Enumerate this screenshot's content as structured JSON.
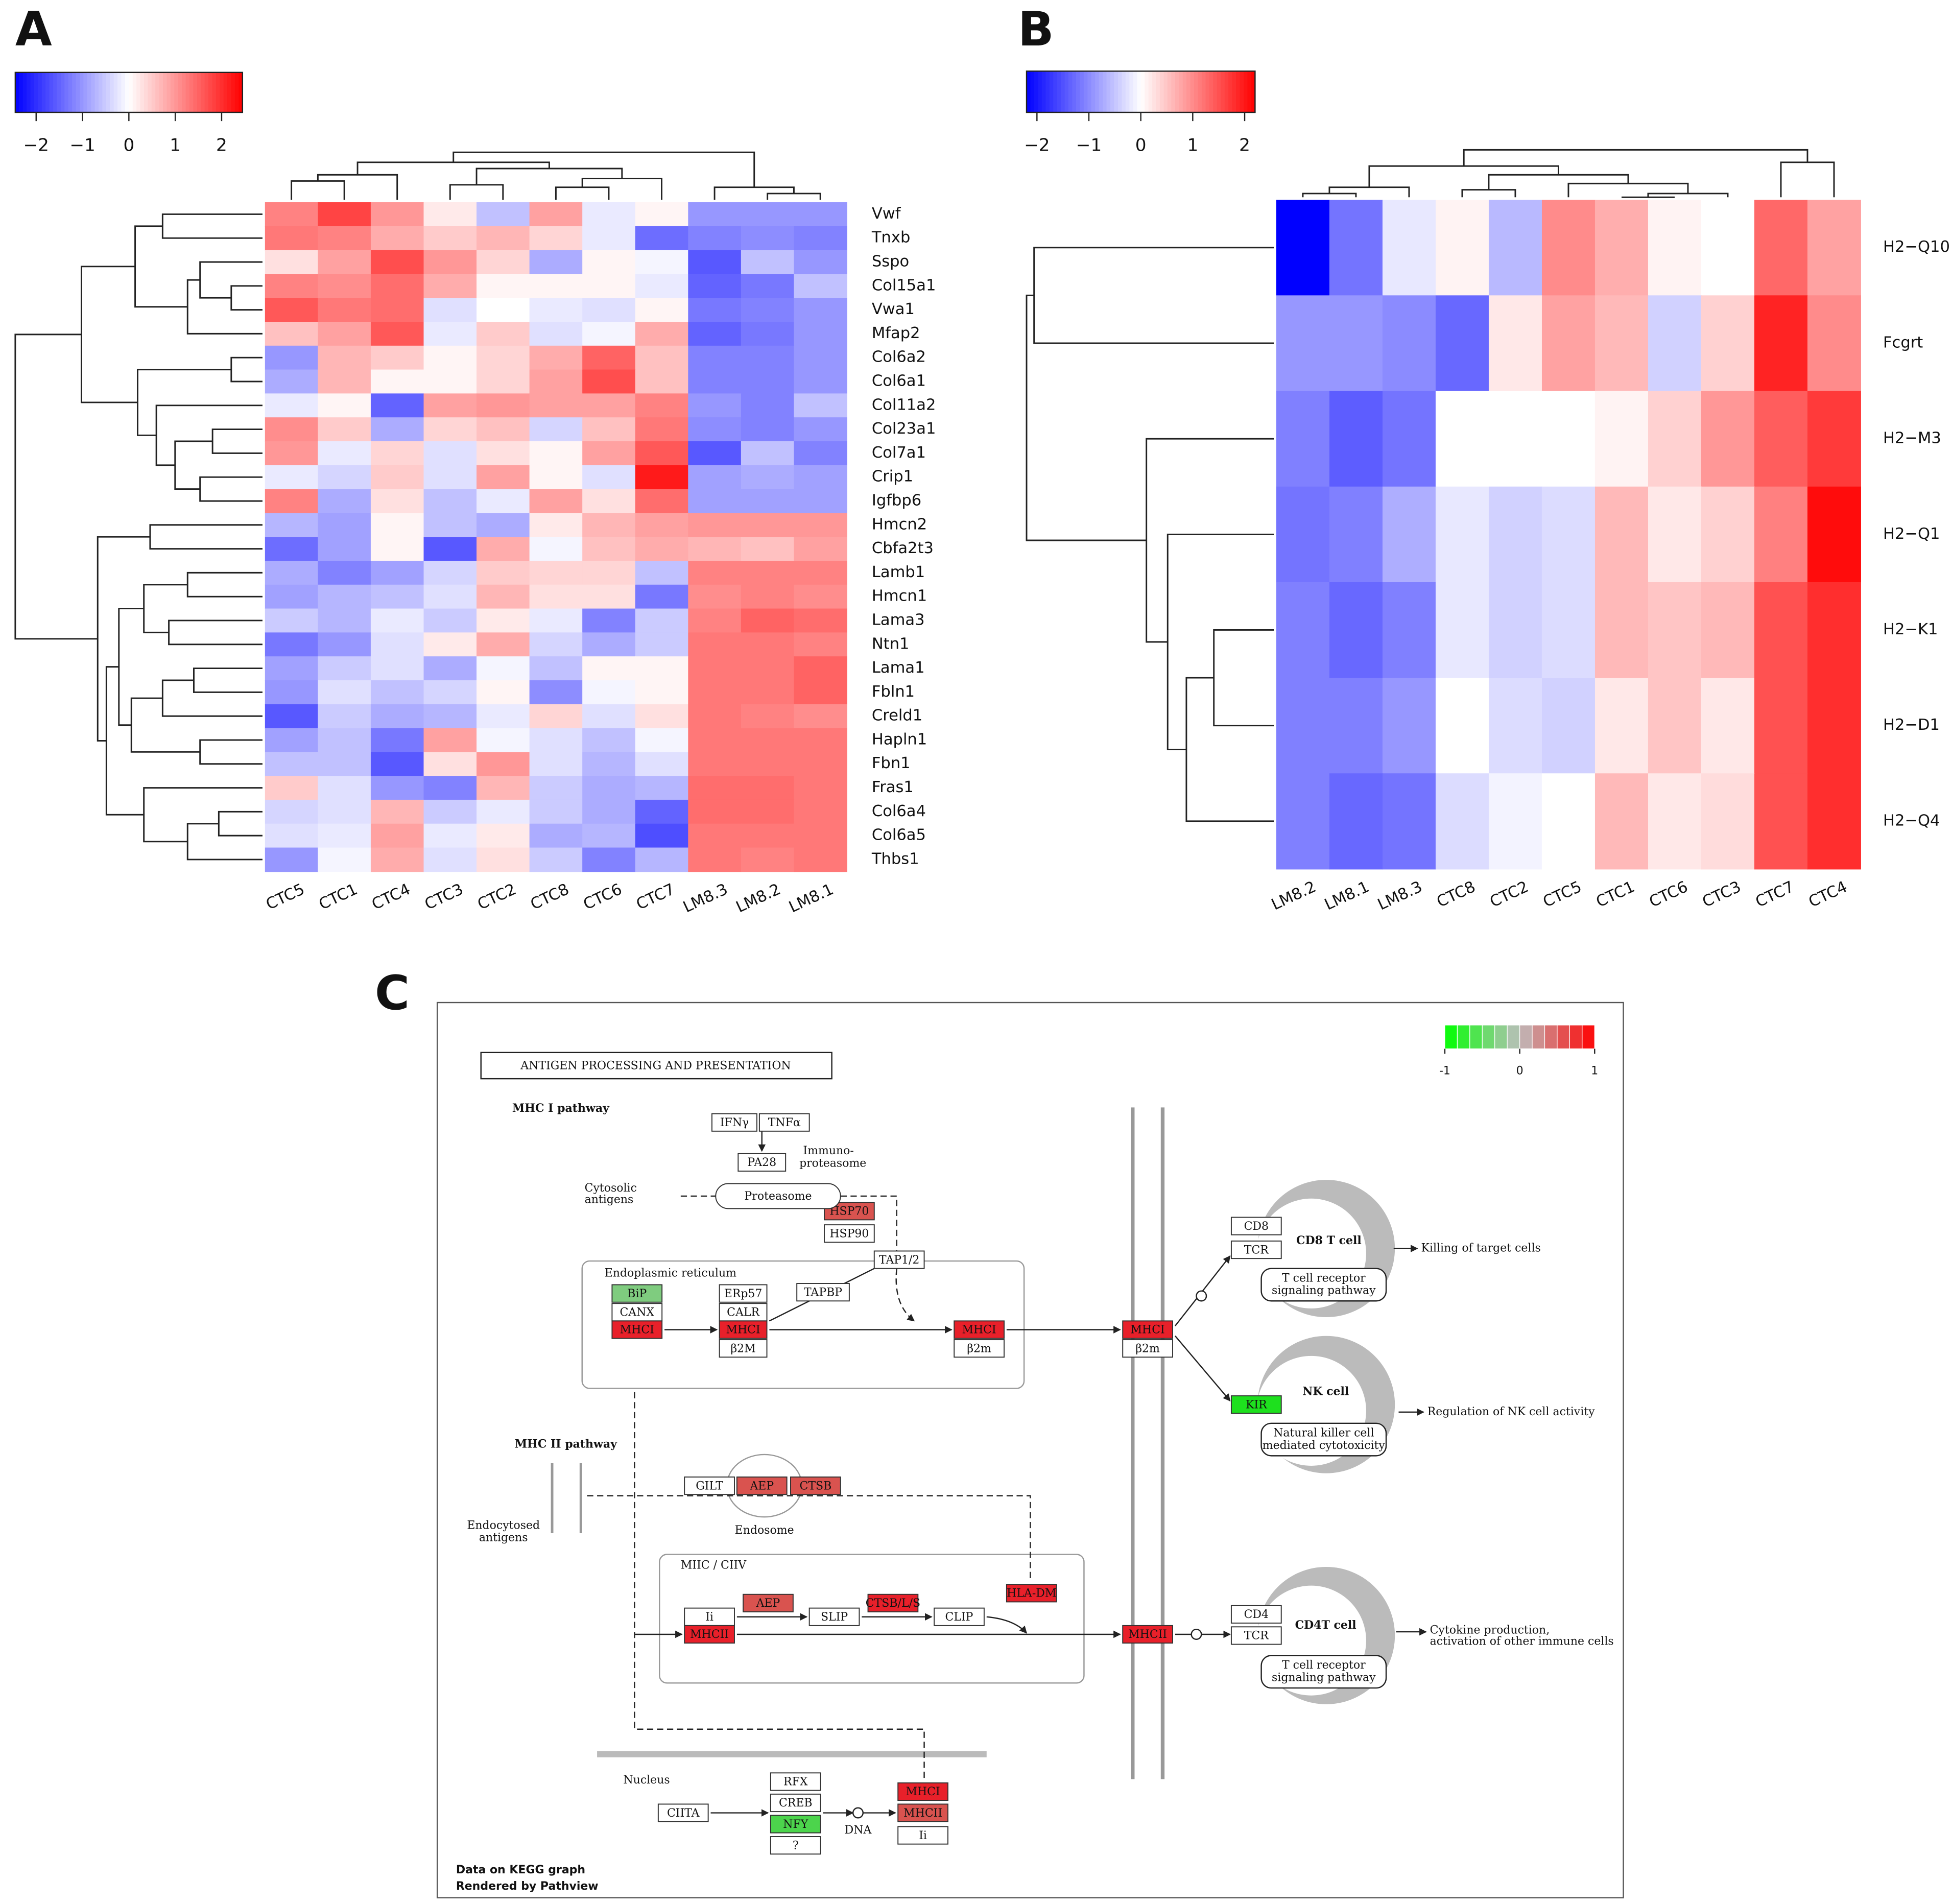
{
  "chart_data": [
    {
      "type": "heatmap",
      "panel": "A",
      "columns": [
        "CTC5",
        "CTC1",
        "CTC4",
        "CTC3",
        "CTC2",
        "CTC8",
        "CTC6",
        "CTC7",
        "LM8.3",
        "LM8.2",
        "LM8.1"
      ],
      "rows": [
        "Vwf",
        "Tnxb",
        "Sspo",
        "Col15a1",
        "Vwa1",
        "Mfap2",
        "Col6a2",
        "Col6a1",
        "Col11a2",
        "Col23a1",
        "Col7a1",
        "Crip1",
        "Igfbp6",
        "Hmcn2",
        "Cbfa2t3",
        "Lamb1",
        "Hmcn1",
        "Lama3",
        "Ntn1",
        "Lama1",
        "Fbln1",
        "Creld1",
        "Hapln1",
        "Fbn1",
        "Fras1",
        "Col6a4",
        "Col6a5",
        "Thbs1"
      ],
      "values": [
        [
          1.2,
          1.8,
          1.0,
          0.2,
          -0.6,
          0.9,
          -0.2,
          0.1,
          -1.0,
          -1.0,
          -1.0
        ],
        [
          1.3,
          1.2,
          0.8,
          0.5,
          0.7,
          0.4,
          -0.2,
          -1.4,
          -1.2,
          -1.1,
          -1.2
        ],
        [
          0.3,
          0.9,
          1.7,
          1.0,
          0.4,
          -0.8,
          0.1,
          -0.1,
          -1.6,
          -0.6,
          -1.0
        ],
        [
          1.2,
          1.1,
          1.4,
          0.8,
          0.1,
          0.1,
          0.1,
          -0.2,
          -1.5,
          -1.3,
          -0.6
        ],
        [
          1.6,
          1.3,
          1.4,
          -0.3,
          0.0,
          -0.2,
          -0.3,
          0.1,
          -1.3,
          -1.2,
          -1.0
        ],
        [
          0.6,
          0.9,
          1.6,
          -0.2,
          0.5,
          -0.3,
          -0.1,
          0.8,
          -1.5,
          -1.3,
          -1.0
        ],
        [
          -1.0,
          0.7,
          0.5,
          0.1,
          0.4,
          0.8,
          1.5,
          0.6,
          -1.2,
          -1.2,
          -1.0
        ],
        [
          -0.8,
          0.7,
          0.1,
          0.1,
          0.4,
          0.9,
          1.7,
          0.6,
          -1.2,
          -1.2,
          -1.0
        ],
        [
          -0.2,
          0.1,
          -1.5,
          0.9,
          1.0,
          0.9,
          0.9,
          1.2,
          -1.0,
          -1.2,
          -0.6
        ],
        [
          1.1,
          0.5,
          -0.8,
          0.4,
          0.6,
          -0.4,
          0.6,
          1.3,
          -1.1,
          -1.2,
          -1.0
        ],
        [
          1.0,
          -0.2,
          0.4,
          -0.3,
          0.3,
          0.1,
          0.9,
          1.6,
          -1.6,
          -0.6,
          -1.2
        ],
        [
          -0.2,
          -0.4,
          0.5,
          -0.3,
          0.9,
          0.1,
          -0.3,
          2.2,
          -0.9,
          -0.8,
          -0.9
        ],
        [
          1.2,
          -0.8,
          0.3,
          -0.6,
          -0.2,
          0.9,
          0.3,
          1.4,
          -0.9,
          -0.9,
          -0.9
        ],
        [
          -0.7,
          -0.9,
          0.1,
          -0.6,
          -0.8,
          0.2,
          0.7,
          0.9,
          1.0,
          1.0,
          1.0
        ],
        [
          -1.4,
          -0.9,
          0.1,
          -1.6,
          0.8,
          -0.1,
          0.6,
          0.8,
          0.7,
          0.6,
          0.9
        ],
        [
          -0.8,
          -1.2,
          -0.9,
          -0.4,
          0.5,
          0.4,
          0.4,
          -0.6,
          1.2,
          1.2,
          1.2
        ],
        [
          -0.9,
          -0.7,
          -0.6,
          -0.3,
          0.7,
          0.3,
          0.3,
          -1.3,
          1.1,
          1.2,
          1.1
        ],
        [
          -0.5,
          -0.7,
          -0.2,
          -0.5,
          0.2,
          -0.2,
          -1.2,
          -0.5,
          1.2,
          1.5,
          1.4
        ],
        [
          -1.3,
          -1.0,
          -0.3,
          0.2,
          0.8,
          -0.4,
          -0.8,
          -0.5,
          1.3,
          1.3,
          1.2
        ],
        [
          -0.9,
          -0.5,
          -0.3,
          -0.8,
          -0.1,
          -0.6,
          0.1,
          0.1,
          1.3,
          1.3,
          1.5
        ],
        [
          -1.0,
          -0.3,
          -0.6,
          -0.4,
          0.1,
          -1.1,
          -0.1,
          0.1,
          1.3,
          1.3,
          1.5
        ],
        [
          -1.6,
          -0.5,
          -0.8,
          -0.7,
          -0.2,
          0.4,
          -0.3,
          0.3,
          1.3,
          1.2,
          1.1
        ],
        [
          -0.9,
          -0.6,
          -1.3,
          0.9,
          -0.1,
          -0.3,
          -0.6,
          -0.1,
          1.3,
          1.3,
          1.3
        ],
        [
          -0.6,
          -0.6,
          -1.6,
          0.3,
          1.0,
          -0.3,
          -0.7,
          -0.3,
          1.3,
          1.3,
          1.3
        ],
        [
          0.5,
          -0.3,
          -1.0,
          -1.2,
          0.7,
          -0.5,
          -0.8,
          -0.7,
          1.4,
          1.4,
          1.3
        ],
        [
          -0.4,
          -0.3,
          0.7,
          -0.5,
          -0.2,
          -0.5,
          -0.8,
          -1.5,
          1.4,
          1.4,
          1.3
        ],
        [
          -0.3,
          -0.2,
          0.9,
          -0.2,
          0.2,
          -0.8,
          -0.7,
          -1.7,
          1.3,
          1.3,
          1.3
        ],
        [
          -1.0,
          -0.1,
          0.8,
          -0.3,
          0.3,
          -0.5,
          -1.2,
          -0.7,
          1.3,
          1.2,
          1.3
        ]
      ],
      "colorbar": {
        "lim": [
          -2.45,
          2.45
        ],
        "ticks": [
          {
            "value": -2,
            "label": "−2"
          },
          {
            "value": -1,
            "label": "−1"
          },
          0,
          1,
          2
        ],
        "colors": [
          "#0000ff",
          "#ffffff",
          "#ff0000"
        ]
      }
    },
    {
      "type": "heatmap",
      "panel": "B",
      "columns": [
        "LM8.2",
        "LM8.1",
        "LM8.3",
        "CTC8",
        "CTC2",
        "CTC5",
        "CTC1",
        "CTC6",
        "CTC3",
        "CTC7",
        "CTC4"
      ],
      "rows": [
        "H2−Q10",
        "Fcgrt",
        "H2−M3",
        "H2−Q1",
        "H2−K1",
        "H2−D1",
        "H2−Q4"
      ],
      "values": [
        [
          -2.2,
          -1.2,
          -0.2,
          0.1,
          -0.6,
          1.0,
          0.7,
          0.1,
          0.0,
          1.3,
          0.8
        ],
        [
          -0.9,
          -0.9,
          -1.0,
          -1.3,
          0.2,
          0.8,
          0.6,
          -0.4,
          0.4,
          1.9,
          1.0
        ],
        [
          -1.1,
          -1.4,
          -1.2,
          0.0,
          0.0,
          0.0,
          0.1,
          0.4,
          0.9,
          1.4,
          1.7
        ],
        [
          -1.2,
          -1.1,
          -0.7,
          -0.2,
          -0.4,
          -0.3,
          0.6,
          0.2,
          0.4,
          1.1,
          2.1
        ],
        [
          -1.1,
          -1.3,
          -1.1,
          -0.2,
          -0.4,
          -0.3,
          0.6,
          0.5,
          0.6,
          1.5,
          1.8
        ],
        [
          -1.1,
          -1.1,
          -0.9,
          0.0,
          -0.3,
          -0.4,
          0.2,
          0.5,
          0.2,
          1.5,
          1.8
        ],
        [
          -1.1,
          -1.3,
          -1.2,
          -0.3,
          -0.1,
          0.0,
          0.6,
          0.2,
          0.3,
          1.5,
          1.8
        ]
      ],
      "colorbar": {
        "lim": [
          -2.2,
          2.2
        ],
        "ticks": [
          {
            "value": -2,
            "label": "−2"
          },
          {
            "value": -1,
            "label": "−1"
          },
          0,
          1,
          2
        ],
        "colors": [
          "#0000ff",
          "#ffffff",
          "#ff0000"
        ]
      }
    }
  ],
  "pathway": {
    "panel": "C",
    "title": "ANTIGEN PROCESSING AND PRESENTATION",
    "legend": {
      "lim": [
        -1,
        1
      ],
      "ticks": [
        -1,
        0,
        1
      ],
      "colors": [
        "#00ff00",
        "#bebebe",
        "#ff0000"
      ]
    },
    "nodes": [
      {
        "label": "IFNγ",
        "color": "#ffffff"
      },
      {
        "label": "TNFα",
        "color": "#ffffff"
      },
      {
        "label": "PA28",
        "color": "#ffffff"
      },
      {
        "label": "HSP70",
        "color": "#d9534f"
      },
      {
        "label": "HSP90",
        "color": "#ffffff"
      },
      {
        "label": "TAP1/2",
        "color": "#ffffff"
      },
      {
        "label": "BiP",
        "color": "#7fcc7f"
      },
      {
        "label": "CANX",
        "color": "#ffffff"
      },
      {
        "label": "MHCI",
        "color": "#e8202a"
      },
      {
        "label": "ERp57",
        "color": "#ffffff"
      },
      {
        "label": "CALR",
        "color": "#ffffff"
      },
      {
        "label": "MHCI",
        "color": "#e8202a"
      },
      {
        "label": "β2M",
        "color": "#ffffff"
      },
      {
        "label": "TAPBP",
        "color": "#ffffff"
      },
      {
        "label": "MHCI",
        "color": "#e8202a"
      },
      {
        "label": "β2m",
        "color": "#ffffff"
      },
      {
        "label": "MHCI",
        "color": "#e8202a"
      },
      {
        "label": "β2m",
        "color": "#ffffff"
      },
      {
        "label": "CD8",
        "color": "#ffffff"
      },
      {
        "label": "TCR",
        "color": "#ffffff"
      },
      {
        "label": "KIR",
        "color": "#1ee01e"
      },
      {
        "label": "GILT",
        "color": "#ffffff"
      },
      {
        "label": "AEP",
        "color": "#d9534f"
      },
      {
        "label": "CTSB",
        "color": "#d9534f"
      },
      {
        "label": "AEP",
        "color": "#d9534f"
      },
      {
        "label": "CTSB/L/S",
        "color": "#e8202a"
      },
      {
        "label": "HLA-DM",
        "color": "#e8202a"
      },
      {
        "label": "Ii",
        "color": "#ffffff"
      },
      {
        "label": "MHCII",
        "color": "#e8202a"
      },
      {
        "label": "SLIP",
        "color": "#ffffff"
      },
      {
        "label": "CLIP",
        "color": "#ffffff"
      },
      {
        "label": "MHCII",
        "color": "#e8202a"
      },
      {
        "label": "CD4",
        "color": "#ffffff"
      },
      {
        "label": "TCR",
        "color": "#ffffff"
      },
      {
        "label": "RFX",
        "color": "#ffffff"
      },
      {
        "label": "CREB",
        "color": "#ffffff"
      },
      {
        "label": "NFY",
        "color": "#4cd44c"
      },
      {
        "label": "?",
        "color": "#ffffff"
      },
      {
        "label": "CIITA",
        "color": "#ffffff"
      },
      {
        "label": "MHCI",
        "color": "#e8202a"
      },
      {
        "label": "MHCII",
        "color": "#d9534f"
      },
      {
        "label": "Ii",
        "color": "#ffffff"
      },
      {
        "label": "Proteasome",
        "color": "#ffffff"
      }
    ],
    "labels": [
      "MHC I pathway",
      "Immuno-",
      "proteasome",
      "Cytosolic",
      "antigens",
      "Endoplasmic reticulum",
      "CD8 T cell",
      "T cell receptor",
      "signaling pathway",
      "Killing of target cells",
      "NK cell",
      "Natural killer cell",
      "mediated cytotoxicity",
      "Regulation of NK cell activity",
      "MHC II pathway",
      "Endocytosed",
      "antigens",
      "Endosome",
      "MIIC / CIIV",
      "CD4T cell",
      "T cell receptor",
      "signaling pathway",
      "Cytokine production,",
      "activation of other immune cells",
      "Nucleus",
      "DNA"
    ],
    "footer": [
      "Data on KEGG graph",
      "Rendered by Pathview"
    ]
  }
}
